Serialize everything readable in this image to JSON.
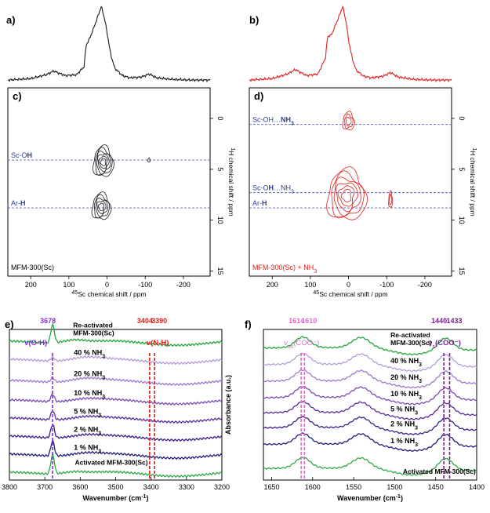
{
  "colors": {
    "nmr_c": "#1a1a1a",
    "nmr_d": "#e0201c",
    "guide": "#5a5fc0",
    "label_blue": "#2b3f9a",
    "purple": "#8a2be2",
    "red": "#e01b1b",
    "pink": "#d76ec7",
    "darkpurple": "#7a1f8a"
  },
  "panels": {
    "a": "a)",
    "b": "b)",
    "c": "c)",
    "d": "d)",
    "e": "e)",
    "f": "f)"
  },
  "chart_data": [
    {
      "id": "c",
      "type": "contour",
      "sample_label": "MFM-300(Sc)",
      "xlabel": "45Sc chemical shift / ppm",
      "ylabel": "1H chemical shift / ppm",
      "xlim": [
        260,
        -270
      ],
      "ylim": [
        -3,
        15.5
      ],
      "xticks": [
        200,
        100,
        0,
        -100,
        -200
      ],
      "yticks": [
        0,
        5,
        10,
        15
      ],
      "guides": [
        {
          "label": "Sc-OH",
          "y": 4.1
        },
        {
          "label": "Ar-H",
          "y": 8.8
        }
      ],
      "peaks": [
        {
          "x": 10,
          "y": 4.3,
          "sx": 26,
          "sy": 1.5,
          "levels": 6
        },
        {
          "x": 15,
          "y": 8.7,
          "sx": 24,
          "sy": 1.3,
          "levels": 5
        },
        {
          "x": -110,
          "y": 4.1,
          "sx": 3,
          "sy": 0.2,
          "levels": 1
        }
      ],
      "projection_top": {
        "x": [
          260,
          200,
          160,
          140,
          110,
          80,
          60,
          55,
          45,
          30,
          15,
          5,
          0,
          -10,
          -20,
          -40,
          -60,
          -90,
          -110,
          -130,
          -170,
          -220,
          -270
        ],
        "y": [
          0.02,
          0.04,
          0.09,
          0.14,
          0.08,
          0.09,
          0.2,
          0.48,
          0.58,
          0.78,
          1.0,
          0.8,
          0.65,
          0.35,
          0.18,
          0.08,
          0.05,
          0.06,
          0.1,
          0.05,
          0.03,
          0.02,
          0.02
        ]
      }
    },
    {
      "id": "d",
      "type": "contour",
      "sample_label": "MFM-300(Sc) + NH3",
      "xlabel": "45Sc chemical shift / ppm",
      "ylabel": "1H chemical shift / ppm",
      "xlim": [
        260,
        -270
      ],
      "ylim": [
        -3,
        15.5
      ],
      "xticks": [
        200,
        100,
        0,
        -100,
        -200
      ],
      "yticks": [
        0,
        5,
        10,
        15
      ],
      "guides": [
        {
          "label": "Sc-OH…NH3",
          "y": 0.6
        },
        {
          "label": "Sc-OH…NH3",
          "y": 7.3
        },
        {
          "label": "Ar-H",
          "y": 8.8
        }
      ],
      "peaks": [
        {
          "x": 0,
          "y": 0.3,
          "sx": 15,
          "sy": 0.9,
          "levels": 3
        },
        {
          "x": 5,
          "y": 7.6,
          "sx": 50,
          "sy": 2.5,
          "levels": 6
        },
        {
          "x": -110,
          "y": 8.0,
          "sx": 5,
          "sy": 0.8,
          "levels": 2
        }
      ],
      "projection_top": {
        "x": [
          260,
          200,
          160,
          140,
          110,
          80,
          60,
          55,
          45,
          30,
          15,
          5,
          0,
          -10,
          -20,
          -40,
          -60,
          -90,
          -110,
          -130,
          -170,
          -220,
          -270
        ],
        "y": [
          0.02,
          0.04,
          0.1,
          0.16,
          0.08,
          0.1,
          0.32,
          0.6,
          0.62,
          0.8,
          1.0,
          0.75,
          0.55,
          0.3,
          0.15,
          0.07,
          0.05,
          0.07,
          0.12,
          0.06,
          0.03,
          0.02,
          0.02
        ]
      }
    },
    {
      "id": "e",
      "type": "line",
      "xlabel": "Wavenumber (cm⁻¹)",
      "xlim": [
        3800,
        3200
      ],
      "xticks": [
        3800,
        3700,
        3600,
        3500,
        3400,
        3300,
        3200
      ],
      "markers": [
        {
          "x": 3678,
          "label": "3678",
          "color": "purple",
          "tag": "ν(O-H)"
        },
        {
          "x": 3404,
          "label": "3404",
          "color": "red",
          "tag": "ν(N-H)"
        },
        {
          "x": 3390,
          "label": "3390",
          "color": "red",
          "tag": ""
        }
      ],
      "series": [
        {
          "name": "Re-activated MFM-300(Sc)",
          "color": "#22a63a",
          "offset": 0.92,
          "peak": 0.12,
          "bumps": [
            {
              "x": 3620,
              "h": 0.02,
              "w": 30
            }
          ]
        },
        {
          "name": "40 % NH3",
          "color": "#b49bdc",
          "offset": 0.8,
          "peak": 0.025,
          "bumps": [
            {
              "x": 3590,
              "h": 0.02,
              "w": 40
            }
          ]
        },
        {
          "name": "20 % NH3",
          "color": "#9d78d0",
          "offset": 0.66,
          "peak": 0.03,
          "bumps": [
            {
              "x": 3590,
              "h": 0.02,
              "w": 40
            }
          ]
        },
        {
          "name": "10 % NH3",
          "color": "#7b49b6",
          "offset": 0.53,
          "peak": 0.05,
          "bumps": [
            {
              "x": 3590,
              "h": 0.015,
              "w": 40
            }
          ]
        },
        {
          "name": "5 % NH3",
          "color": "#5a2a9e",
          "offset": 0.41,
          "peak": 0.06,
          "bumps": [
            {
              "x": 3590,
              "h": 0.015,
              "w": 40
            }
          ]
        },
        {
          "name": "2 % NH3",
          "color": "#3c1d88",
          "offset": 0.29,
          "peak": 0.09,
          "bumps": [
            {
              "x": 3590,
              "h": 0.015,
              "w": 40
            }
          ]
        },
        {
          "name": "1 % NH3",
          "color": "#1f1a7a",
          "offset": 0.17,
          "peak": 0.1,
          "bumps": [
            {
              "x": 3590,
              "h": 0.015,
              "w": 40
            }
          ]
        },
        {
          "name": "Activated MFM-300(Sc)",
          "color": "#2ea845",
          "offset": 0.05,
          "peak": 0.13,
          "bumps": [
            {
              "x": 3620,
              "h": 0.015,
              "w": 30
            }
          ]
        }
      ]
    },
    {
      "id": "f",
      "type": "line",
      "xlabel": "Wavenumber (cm⁻¹)",
      "ylabel": "Absorbance (a.u.)",
      "xlim": [
        1660,
        1400
      ],
      "xticks": [
        1650,
        1600,
        1550,
        1500,
        1450,
        1400
      ],
      "markers": [
        {
          "x": 1614,
          "label": "1614",
          "color": "pink",
          "tag": "νas(COO⁻)"
        },
        {
          "x": 1610,
          "label": "1610",
          "color": "pink",
          "tag": ""
        },
        {
          "x": 1440,
          "label": "1440",
          "color": "darkpurple",
          "tag": "νs(COO⁻)"
        },
        {
          "x": 1433,
          "label": "1433",
          "color": "darkpurple",
          "tag": ""
        }
      ],
      "series": [
        {
          "name": "Re-activated MFM-300(Sc)",
          "color": "#22a63a",
          "offset": 0.86
        },
        {
          "name": "40 % NH3",
          "color": "#b49bdc",
          "offset": 0.75
        },
        {
          "name": "20 % NH3",
          "color": "#9d78d0",
          "offset": 0.64
        },
        {
          "name": "10 % NH3",
          "color": "#7b49b6",
          "offset": 0.53
        },
        {
          "name": "5 % NH3",
          "color": "#5a2a9e",
          "offset": 0.43
        },
        {
          "name": "2 % NH3",
          "color": "#3c1d88",
          "offset": 0.33
        },
        {
          "name": "1 % NH3",
          "color": "#1f1a7a",
          "offset": 0.22
        },
        {
          "name": "Activated MFM-300(Sc)",
          "color": "#2ea845",
          "offset": 0.06
        }
      ]
    }
  ]
}
